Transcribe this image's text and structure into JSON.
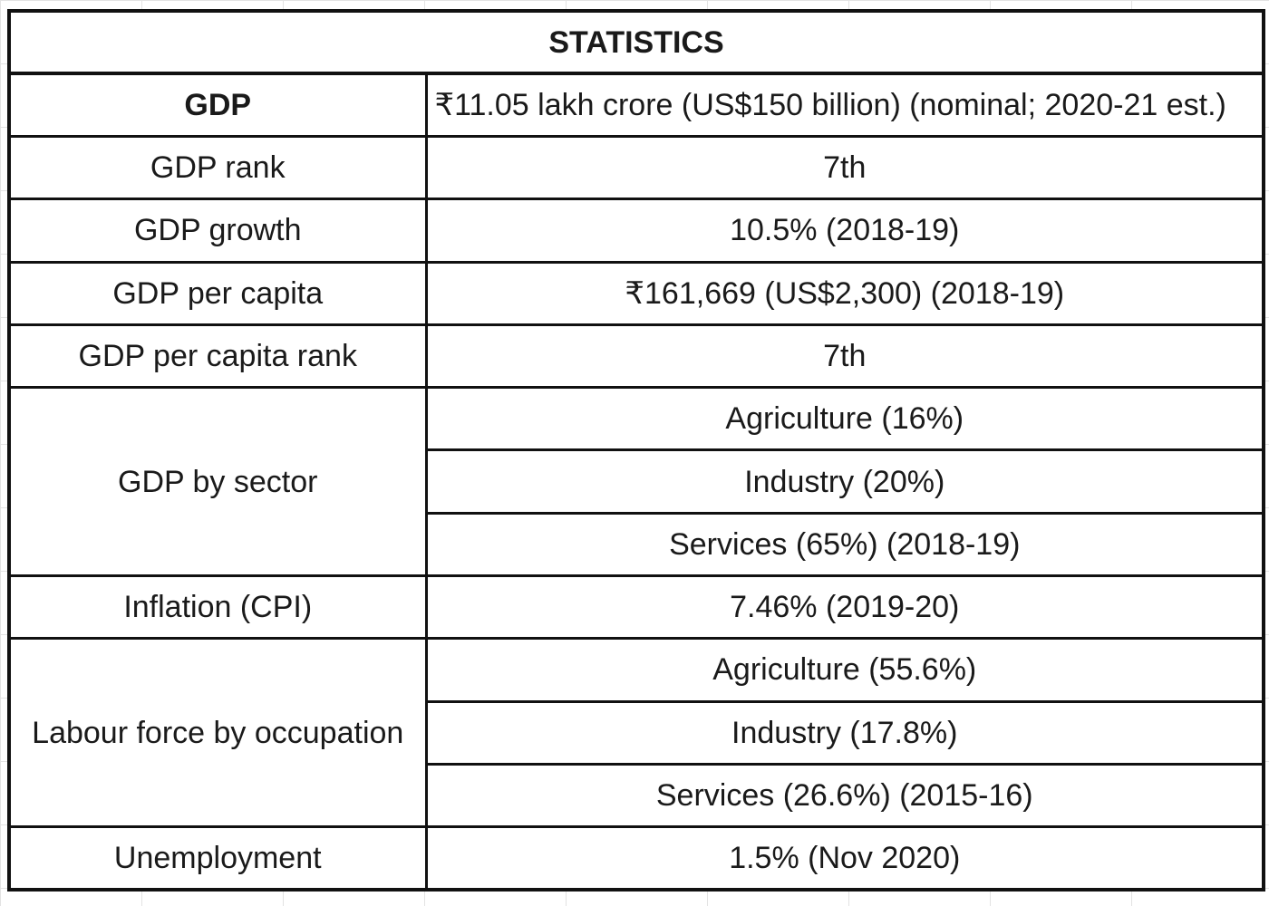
{
  "table": {
    "title": "STATISTICS",
    "gdp": {
      "label": "GDP",
      "value": "₹11.05 lakh crore (US$150 billion) (nominal; 2020-21 est.)"
    },
    "gdp_rank": {
      "label": "GDP rank",
      "value": "7th"
    },
    "gdp_growth": {
      "label": "GDP growth",
      "value": "10.5% (2018-19)"
    },
    "gdp_per_capita": {
      "label": "GDP per capita",
      "value": "₹161,669 (US$2,300) (2018-19)"
    },
    "gdp_per_capita_rank": {
      "label": "GDP per capita rank",
      "value": "7th"
    },
    "gdp_by_sector": {
      "label": "GDP by sector",
      "values": [
        "Agriculture (16%)",
        "Industry (20%)",
        "Services (65%) (2018-19)"
      ]
    },
    "inflation": {
      "label": "Inflation (CPI)",
      "value": "7.46% (2019-20)"
    },
    "labour_force": {
      "label": "Labour force by occupation",
      "values": [
        "Agriculture (55.6%)",
        "Industry (17.8%)",
        "Services (26.6%) (2015-16)"
      ]
    },
    "unemployment": {
      "label": "Unemployment",
      "value": "1.5% (Nov 2020)"
    }
  }
}
